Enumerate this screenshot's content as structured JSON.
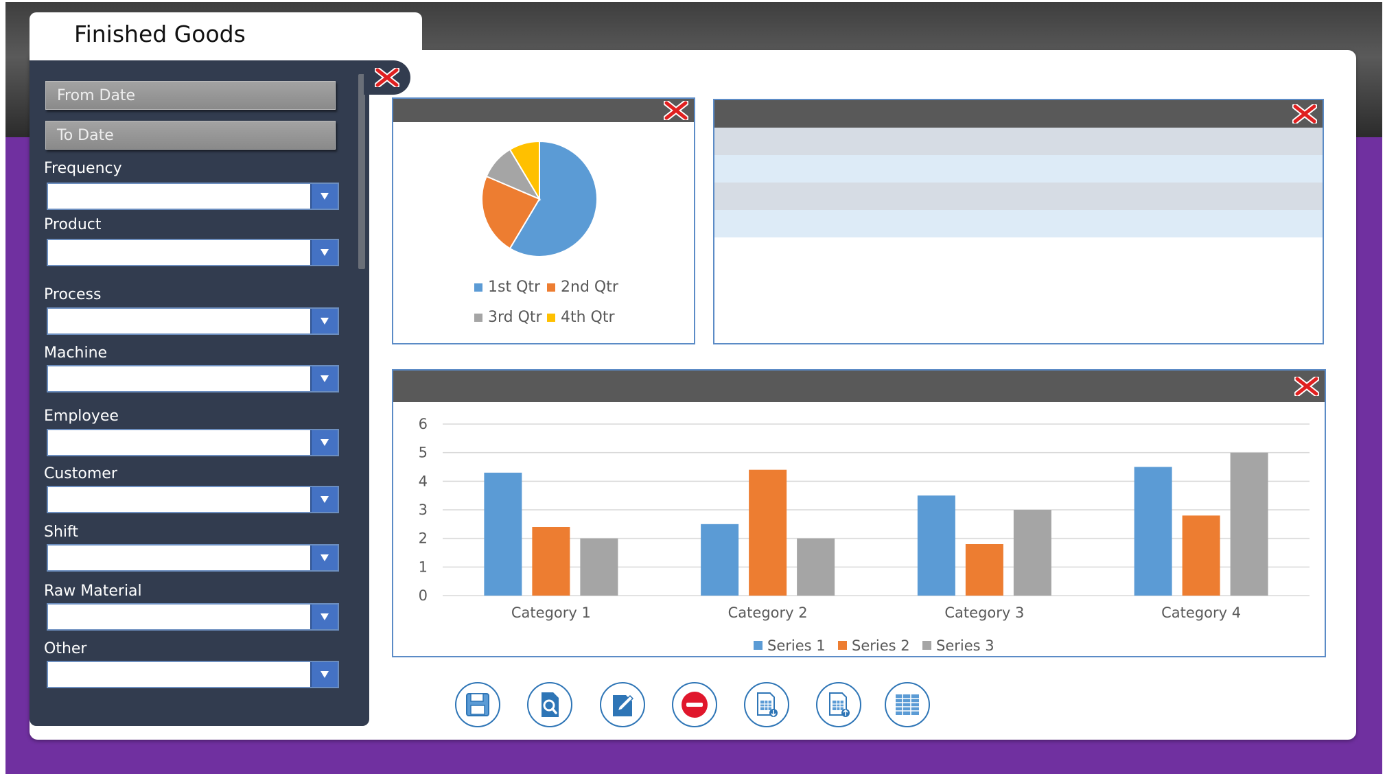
{
  "app": {
    "title": "Finished Goods"
  },
  "filters": {
    "from_date": "From Date",
    "to_date": "To Date",
    "fields": [
      {
        "label": "Frequency",
        "value": ""
      },
      {
        "label": "Product",
        "value": ""
      },
      {
        "label": "Process",
        "value": ""
      },
      {
        "label": "Machine",
        "value": ""
      },
      {
        "label": "Employee",
        "value": ""
      },
      {
        "label": "Customer",
        "value": ""
      },
      {
        "label": "Shift",
        "value": ""
      },
      {
        "label": "Raw Material",
        "value": ""
      },
      {
        "label": "Other",
        "value": ""
      }
    ]
  },
  "colors": {
    "purple_band": "#7030a0",
    "sidebar": "#323c4f",
    "panel_header": "#595959",
    "series1": "#5b9bd5",
    "series2": "#ed7d31",
    "series3": "#a5a5a5",
    "series4": "#ffc000",
    "close_icon": "#e02020"
  },
  "pie_panel": {
    "legend": [
      "1st Qtr",
      "2nd Qtr",
      "3rd Qtr",
      "4th Qtr"
    ]
  },
  "table_panel": {
    "rows": 4
  },
  "actions": [
    "save-icon",
    "search-document-icon",
    "edit-icon",
    "delete-icon",
    "export-excel-icon",
    "import-excel-icon",
    "table-icon"
  ],
  "chart_data": [
    {
      "type": "pie",
      "categories": [
        "1st Qtr",
        "2nd Qtr",
        "3rd Qtr",
        "4th Qtr"
      ],
      "values": [
        8.2,
        3.2,
        1.4,
        1.2
      ],
      "title": "",
      "legend": "bottom"
    },
    {
      "type": "bar",
      "categories": [
        "Category 1",
        "Category 2",
        "Category 3",
        "Category 4"
      ],
      "series": [
        {
          "name": "Series 1",
          "values": [
            4.3,
            2.5,
            3.5,
            4.5
          ]
        },
        {
          "name": "Series 2",
          "values": [
            2.4,
            4.4,
            1.8,
            2.8
          ]
        },
        {
          "name": "Series 3",
          "values": [
            2,
            2,
            3,
            5
          ]
        }
      ],
      "yticks": [
        "0",
        "1",
        "2",
        "3",
        "4",
        "5",
        "6"
      ],
      "ylim": [
        0,
        6
      ],
      "title": "",
      "xlabel": "",
      "ylabel": "",
      "grid": true,
      "legend": "bottom"
    }
  ]
}
